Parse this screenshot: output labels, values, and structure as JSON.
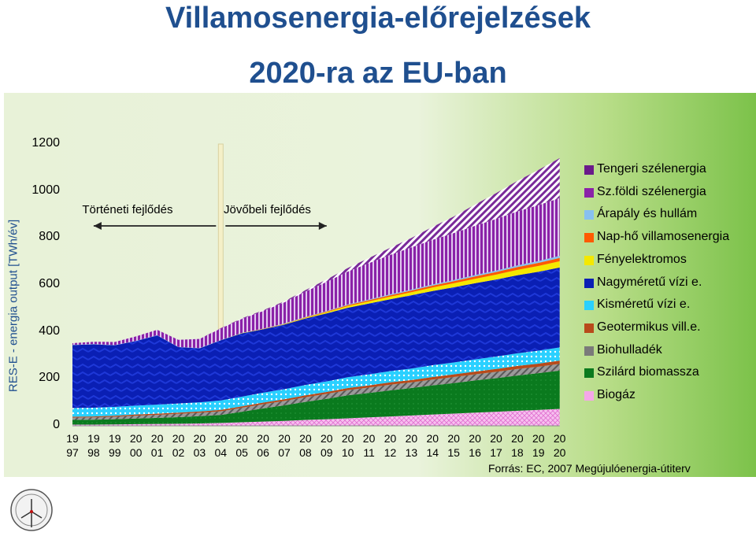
{
  "title_line1": "Villamosenergia-előrejelzések",
  "title_line2": "2020-ra az EU-ban",
  "source": "Forrás: EC, 2007 Megújulóenergia-útiterv",
  "chart_data": {
    "type": "area",
    "ylabel": "RES-E - energia output [TWh/év]",
    "ylim": [
      0,
      1200
    ],
    "yticks": [
      "0",
      "200",
      "400",
      "600",
      "800",
      "1000",
      "1200"
    ],
    "x": [
      "1997",
      "1998",
      "1999",
      "2000",
      "2001",
      "2002",
      "2003",
      "2004",
      "2005",
      "2006",
      "2007",
      "2008",
      "2009",
      "2010",
      "2011",
      "2012",
      "2013",
      "2014",
      "2015",
      "2016",
      "2017",
      "2018",
      "2019",
      "2020"
    ],
    "xtick_labels": [
      [
        "19",
        "97"
      ],
      [
        "19",
        "98"
      ],
      [
        "19",
        "99"
      ],
      [
        "20",
        "00"
      ],
      [
        "20",
        "01"
      ],
      [
        "20",
        "02"
      ],
      [
        "20",
        "03"
      ],
      [
        "20",
        "04"
      ],
      [
        "20",
        "05"
      ],
      [
        "20",
        "06"
      ],
      [
        "20",
        "07"
      ],
      [
        "20",
        "08"
      ],
      [
        "20",
        "09"
      ],
      [
        "20",
        "10"
      ],
      [
        "20",
        "11"
      ],
      [
        "20",
        "12"
      ],
      [
        "20",
        "13"
      ],
      [
        "20",
        "14"
      ],
      [
        "20",
        "15"
      ],
      [
        "20",
        "16"
      ],
      [
        "20",
        "17"
      ],
      [
        "20",
        "18"
      ],
      [
        "20",
        "19"
      ],
      [
        "20",
        "20"
      ]
    ],
    "annotations": {
      "historical": "Történeti fejlődés",
      "future": "Jövőbeli fejlődés"
    },
    "divider_year": "2004",
    "series": [
      {
        "name": "Biogáz",
        "color": "#f4a6e8",
        "values": [
          5,
          5,
          6,
          7,
          8,
          9,
          10,
          12,
          15,
          18,
          21,
          25,
          28,
          32,
          36,
          40,
          44,
          48,
          52,
          56,
          60,
          64,
          68,
          72
        ]
      },
      {
        "name": "Szilárd biomassza",
        "color": "#0a7a1e",
        "values": [
          20,
          21,
          22,
          24,
          26,
          28,
          31,
          34,
          45,
          56,
          66,
          77,
          87,
          98,
          104,
          111,
          117,
          124,
          130,
          137,
          143,
          150,
          156,
          163
        ]
      },
      {
        "name": "Biohulladék",
        "color": "#7a7a7a",
        "values": [
          10,
          10,
          11,
          12,
          13,
          14,
          15,
          16,
          17,
          18,
          19,
          20,
          21,
          22,
          23,
          24,
          24,
          25,
          26,
          26,
          27,
          28,
          28,
          29
        ]
      },
      {
        "name": "Geotermikus vill.e.",
        "color": "#b84a1a",
        "values": [
          4,
          4,
          4,
          5,
          5,
          5,
          5,
          6,
          6,
          7,
          7,
          8,
          8,
          9,
          9,
          10,
          10,
          11,
          11,
          12,
          12,
          13,
          13,
          14
        ]
      },
      {
        "name": "Kisméretű vízi e.",
        "color": "#2ad0ff",
        "values": [
          37,
          37,
          38,
          38,
          38,
          39,
          39,
          40,
          41,
          42,
          43,
          44,
          45,
          46,
          47,
          48,
          49,
          50,
          51,
          52,
          53,
          54,
          55,
          56
        ]
      },
      {
        "name": "Nagyméretű vízi e.",
        "color": "#0a1fb4",
        "values": [
          268,
          270,
          262,
          275,
          295,
          240,
          230,
          256,
          270,
          270,
          275,
          283,
          290,
          296,
          302,
          306,
          312,
          316,
          320,
          324,
          328,
          332,
          336,
          340
        ]
      },
      {
        "name": "Fényelektromos",
        "color": "#f4e800",
        "values": [
          0,
          0,
          0,
          0,
          0,
          0,
          0,
          0,
          1,
          1,
          2,
          3,
          5,
          7,
          9,
          11,
          13,
          15,
          17,
          19,
          21,
          23,
          25,
          27
        ]
      },
      {
        "name": "Nap-hő villamosenergia",
        "color": "#ff5a00",
        "values": [
          0,
          0,
          0,
          0,
          0,
          0,
          0,
          0,
          0,
          1,
          1,
          2,
          3,
          4,
          5,
          6,
          7,
          8,
          9,
          10,
          11,
          12,
          13,
          14
        ]
      },
      {
        "name": "Árapály és hullám",
        "color": "#88c0f0",
        "values": [
          1,
          1,
          1,
          1,
          1,
          1,
          1,
          1,
          1,
          1,
          2,
          2,
          2,
          3,
          3,
          4,
          4,
          5,
          5,
          6,
          6,
          7,
          8,
          9
        ]
      },
      {
        "name": "Sz.földi szélenergia",
        "color": "#8a22a8",
        "values": [
          7,
          10,
          13,
          19,
          23,
          30,
          39,
          50,
          60,
          75,
          90,
          108,
          124,
          140,
          155,
          168,
          180,
          190,
          200,
          210,
          220,
          230,
          238,
          246
        ]
      },
      {
        "name": "Tengeri szélenergia",
        "color": "#6a1a8a",
        "values": [
          0,
          0,
          0,
          0,
          0,
          0,
          0,
          1,
          2,
          3,
          4,
          6,
          10,
          15,
          22,
          30,
          40,
          55,
          70,
          90,
          110,
          130,
          150,
          170
        ]
      }
    ]
  }
}
